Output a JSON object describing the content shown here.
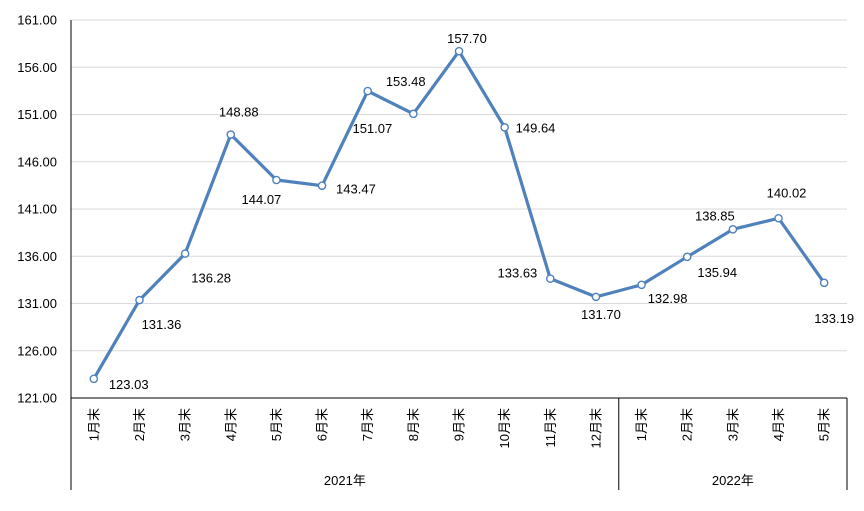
{
  "chart_data": {
    "type": "line",
    "title": "",
    "legend_position": "none",
    "grid": true,
    "y_axis": {
      "min": 121,
      "max": 161,
      "step": 5,
      "tick_labels": [
        "161.00",
        "156.00",
        "151.00",
        "146.00",
        "141.00",
        "136.00",
        "131.00",
        "126.00",
        "121.00"
      ]
    },
    "x_axis": {
      "groups": [
        {
          "label": "2021年",
          "categories": [
            "1月末",
            "2月末",
            "3月末",
            "4月末",
            "5月末",
            "6月末",
            "7月末",
            "8月末",
            "9月末",
            "10月末",
            "11月末",
            "12月末"
          ]
        },
        {
          "label": "2022年",
          "categories": [
            "1月末",
            "2月末",
            "3月末",
            "4月末",
            "5月末"
          ]
        }
      ]
    },
    "series": [
      {
        "name": "",
        "values": [
          123.03,
          131.36,
          136.28,
          148.88,
          144.07,
          143.47,
          153.48,
          151.07,
          157.7,
          149.64,
          133.63,
          131.7,
          132.98,
          135.94,
          138.85,
          140.02,
          133.19
        ],
        "data_labels": [
          "123.03",
          "131.36",
          "136.28",
          "148.88",
          "144.07",
          "143.47",
          "153.48",
          "151.07",
          "157.70",
          "149.64",
          "133.63",
          "131.70",
          "132.98",
          "135.94",
          "138.85",
          "140.02",
          "133.19"
        ],
        "label_placements": [
          {
            "anchor": "start",
            "dx": 15,
            "dy": 10
          },
          {
            "anchor": "middle",
            "dx": 22,
            "dy": 29
          },
          {
            "anchor": "middle",
            "dx": 26,
            "dy": 29
          },
          {
            "anchor": "middle",
            "dx": 8,
            "dy": -18
          },
          {
            "anchor": "middle",
            "dx": -15,
            "dy": 24
          },
          {
            "anchor": "start",
            "dx": 14,
            "dy": 8
          },
          {
            "anchor": "middle",
            "dx": 38,
            "dy": -5
          },
          {
            "anchor": "middle",
            "dx": -41,
            "dy": 19
          },
          {
            "anchor": "middle",
            "dx": 8,
            "dy": -8
          },
          {
            "anchor": "start",
            "dx": 11,
            "dy": 5
          },
          {
            "anchor": "end",
            "dx": -13,
            "dy": -1
          },
          {
            "anchor": "middle",
            "dx": 5,
            "dy": 22
          },
          {
            "anchor": "middle",
            "dx": 26,
            "dy": 18
          },
          {
            "anchor": "middle",
            "dx": 30,
            "dy": 20
          },
          {
            "anchor": "middle",
            "dx": -18,
            "dy": -9
          },
          {
            "anchor": "middle",
            "dx": 8,
            "dy": -21
          },
          {
            "anchor": "middle",
            "dx": 10,
            "dy": 40
          }
        ]
      }
    ],
    "colors": {
      "line": "#4F81BD",
      "marker_fill": "#FFFFFF",
      "marker_stroke": "#4F81BD",
      "gridline": "#D9D9D9",
      "axis": "#000000",
      "text": "#000000"
    }
  }
}
